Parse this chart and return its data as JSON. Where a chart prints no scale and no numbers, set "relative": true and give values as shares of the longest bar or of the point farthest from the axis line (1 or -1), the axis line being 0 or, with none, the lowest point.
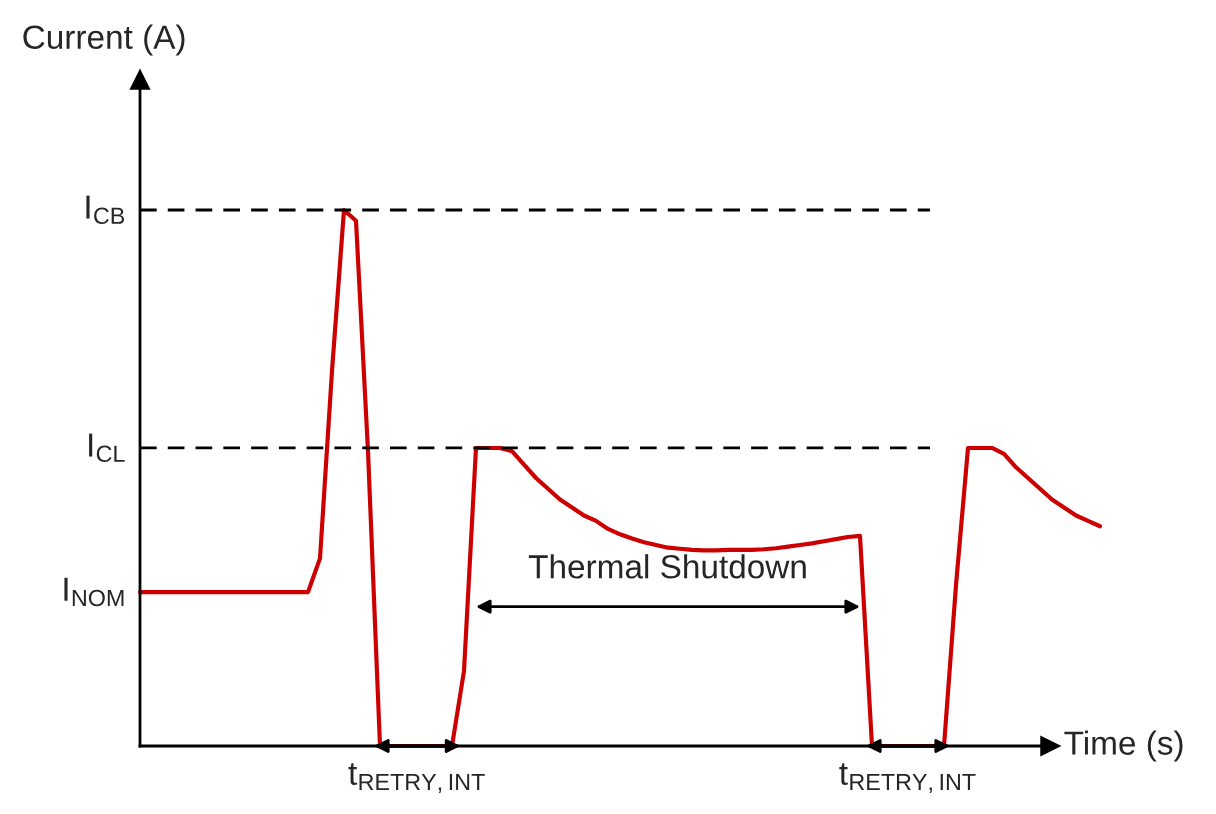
{
  "chart_data": {
    "type": "line",
    "relative": true,
    "xlabel": "Time (s)",
    "ylabel": "Current (A)",
    "categories": [
      null,
      null,
      null,
      null,
      null,
      null,
      null,
      null,
      null,
      null,
      null,
      null,
      null,
      null,
      null,
      null,
      null,
      null,
      null,
      null,
      null,
      null,
      null,
      null,
      null,
      null,
      null,
      null,
      null,
      null,
      null,
      null,
      null,
      null,
      null,
      null,
      null,
      null,
      null,
      null,
      null,
      null,
      null,
      null,
      null,
      null,
      null,
      null,
      null,
      null,
      null,
      null,
      null,
      null,
      null,
      null,
      null,
      null,
      null,
      null,
      null,
      null,
      null,
      null,
      null,
      null,
      null,
      null,
      null,
      null,
      null,
      null,
      null,
      null,
      null,
      null,
      null,
      null,
      null,
      null,
      null
    ],
    "series": [
      {
        "color": "#cc0000",
        "values": [
          0.287,
          0.287,
          0.287,
          0.287,
          0.287,
          0.287,
          0.287,
          0.287,
          0.287,
          0.287,
          0.287,
          0.287,
          0.287,
          0.287,
          0.287,
          0.35,
          0.7,
          1.0,
          0.98,
          0.55,
          0,
          0,
          0,
          0,
          0,
          0,
          0,
          0.14,
          0.556,
          0.556,
          0.556,
          0.55,
          0.525,
          0.5,
          0.48,
          0.46,
          0.445,
          0.43,
          0.42,
          0.405,
          0.395,
          0.387,
          0.38,
          0.375,
          0.37,
          0.368,
          0.366,
          0.365,
          0.365,
          0.366,
          0.366,
          0.366,
          0.367,
          0.369,
          0.372,
          0.375,
          0.378,
          0.382,
          0.386,
          0.39,
          0.392,
          0,
          0,
          0,
          0,
          0,
          0,
          0,
          0.3,
          0.556,
          0.556,
          0.556,
          0.545,
          0.52,
          0.5,
          0.48,
          0.46,
          0.445,
          0.43,
          0.42,
          0.41
        ]
      }
    ],
    "ref_lines": [
      {
        "axis": "y",
        "value": 1.0,
        "label": "I$_{CB}$",
        "color": "#000000",
        "line_style": "dashed"
      },
      {
        "axis": "y",
        "value": 0.556,
        "label": "I$_{CL}$",
        "color": "#000000",
        "line_style": "dashed"
      }
    ],
    "annotations": [
      "I$_{NOM}$",
      "Thermal Shutdown",
      "t$_{RETRY,INT}$",
      "t$_{RETRY,INT}$"
    ],
    "legend": false,
    "marker": "none",
    "line_style": "solid"
  }
}
